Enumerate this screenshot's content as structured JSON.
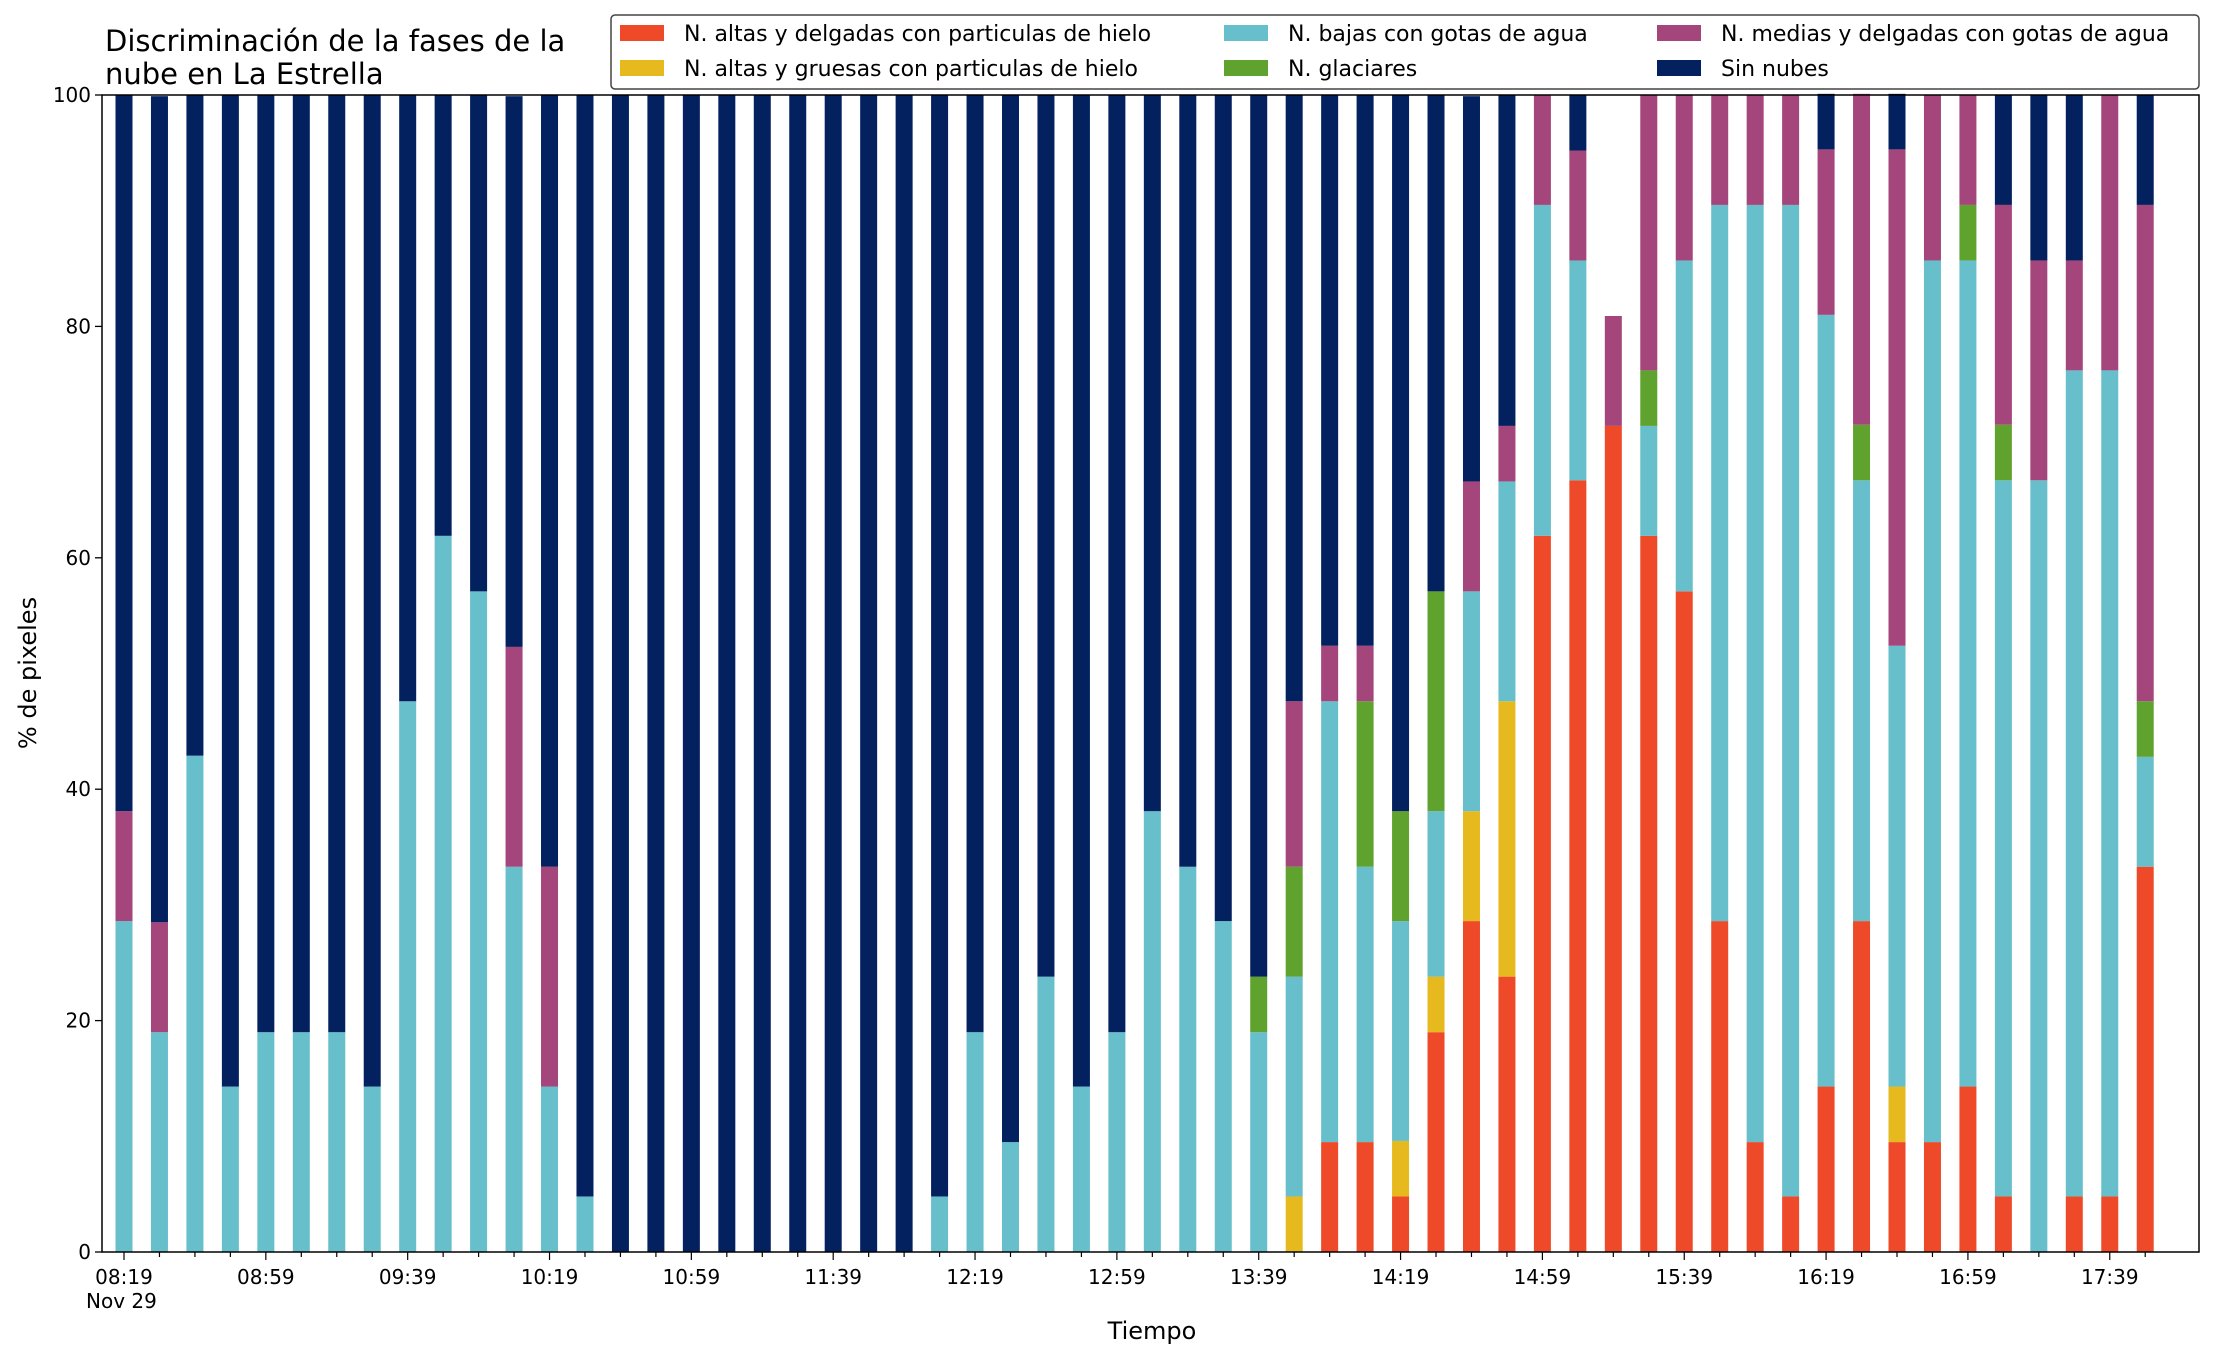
{
  "chart_data": {
    "type": "bar",
    "stacked": true,
    "title_line1": "Discriminación de la fases de la",
    "title_line2": "nube en La Estrella",
    "xlabel": "Tiempo",
    "ylabel": "% de pixeles",
    "ylim": [
      0,
      100
    ],
    "y_ticks": [
      "0",
      "20",
      "40",
      "60",
      "80",
      "100"
    ],
    "x_tick_labels": [
      "08:19",
      "08:59",
      "09:39",
      "10:19",
      "10:59",
      "11:39",
      "12:19",
      "12:59",
      "13:39",
      "14:19",
      "14:59",
      "15:39",
      "16:19",
      "16:59",
      "17:39"
    ],
    "x_sublabel": "Nov 29",
    "categories": [
      "08:19",
      "08:29",
      "08:39",
      "08:49",
      "08:59",
      "09:09",
      "09:19",
      "09:29",
      "09:39",
      "09:49",
      "09:59",
      "10:09",
      "10:19",
      "10:29",
      "10:39",
      "10:49",
      "10:59",
      "11:09",
      "11:19",
      "11:29",
      "11:39",
      "11:49",
      "11:59",
      "12:09",
      "12:19",
      "12:29",
      "12:39",
      "12:49",
      "12:59",
      "13:09",
      "13:19",
      "13:29",
      "13:39",
      "13:49",
      "13:59",
      "14:09",
      "14:19",
      "14:29",
      "14:39",
      "14:49",
      "14:59",
      "15:09",
      "15:19",
      "15:29",
      "15:39",
      "15:49",
      "15:59",
      "16:09",
      "16:19",
      "16:29",
      "16:39",
      "16:49",
      "16:59",
      "17:09",
      "17:19",
      "17:29",
      "17:39",
      "17:49"
    ],
    "legend_placement": "top-right",
    "series": [
      {
        "name": "N. altas y delgadas con particulas de hielo",
        "color": "#ee4a2a",
        "values": [
          0,
          0,
          0,
          0,
          0,
          0,
          0,
          0,
          0,
          0,
          0,
          0,
          0,
          0,
          0,
          0,
          0,
          0,
          0,
          0,
          0,
          0,
          0,
          0,
          0,
          0,
          0,
          0,
          0,
          0,
          0,
          0,
          0,
          0,
          9.5,
          9.5,
          4.8,
          19,
          28.6,
          23.8,
          61.9,
          66.7,
          71.4,
          61.9,
          57.1,
          28.6,
          9.5,
          4.8,
          14.3,
          28.6,
          9.5,
          9.5,
          14.3,
          4.8,
          0,
          4.8,
          4.8,
          33.3
        ]
      },
      {
        "name": "N. altas y gruesas con particulas de hielo",
        "color": "#e6b91e",
        "values": [
          0,
          0,
          0,
          0,
          0,
          0,
          0,
          0,
          0,
          0,
          0,
          0,
          0,
          0,
          0,
          0,
          0,
          0,
          0,
          0,
          0,
          0,
          0,
          0,
          0,
          0,
          0,
          0,
          0,
          0,
          0,
          0,
          0,
          4.8,
          0,
          0,
          4.8,
          4.8,
          9.5,
          23.8,
          0,
          0,
          0,
          0,
          0,
          0,
          0,
          0,
          0,
          0,
          4.8,
          0,
          0,
          0,
          0,
          0,
          0,
          0
        ]
      },
      {
        "name": "N. bajas con gotas de agua",
        "color": "#66bfca",
        "values": [
          28.6,
          19,
          42.9,
          14.3,
          19,
          19,
          19,
          14.3,
          47.6,
          61.9,
          57.1,
          33.3,
          14.3,
          4.8,
          0,
          0,
          0,
          0,
          0,
          0,
          0,
          0,
          0,
          4.8,
          19,
          9.5,
          23.8,
          14.3,
          19,
          38.1,
          33.3,
          28.6,
          19,
          19,
          38.1,
          23.8,
          19,
          14.3,
          19,
          19,
          28.6,
          19,
          0,
          9.5,
          28.6,
          61.9,
          81,
          85.7,
          66.7,
          38.1,
          38.1,
          76.2,
          71.4,
          61.9,
          66.7,
          71.4,
          71.4,
          9.5
        ]
      },
      {
        "name": "N. glaciares",
        "color": "#5fa22e",
        "values": [
          0,
          0,
          0,
          0,
          0,
          0,
          0,
          0,
          0,
          0,
          0,
          0,
          0,
          0,
          0,
          0,
          0,
          0,
          0,
          0,
          0,
          0,
          0,
          0,
          0,
          0,
          0,
          0,
          0,
          0,
          0,
          0,
          4.8,
          9.5,
          0,
          14.3,
          9.5,
          19,
          0,
          0,
          0,
          0,
          0,
          4.8,
          0,
          0,
          0,
          0,
          0,
          4.8,
          0,
          0,
          4.8,
          4.8,
          0,
          0,
          0,
          4.8
        ]
      },
      {
        "name": "N. medias y delgadas con gotas de agua",
        "color": "#a4457b",
        "values": [
          9.5,
          9.5,
          0,
          0,
          0,
          0,
          0,
          0,
          0,
          0,
          0,
          19,
          19,
          0,
          0,
          0,
          0,
          0,
          0,
          0,
          0,
          0,
          0,
          0,
          0,
          0,
          0,
          0,
          0,
          0,
          0,
          0,
          0,
          14.3,
          4.8,
          4.8,
          0,
          0,
          9.5,
          4.8,
          9.5,
          9.5,
          9.5,
          23.8,
          14.3,
          9.5,
          9.5,
          9.5,
          14.3,
          28.6,
          42.9,
          14.3,
          9.5,
          19,
          19,
          9.5,
          23.8,
          42.9
        ]
      },
      {
        "name": "Sin nubes",
        "color": "#03205f",
        "values": [
          61.9,
          71.4,
          57.1,
          85.7,
          81,
          81,
          81,
          85.7,
          52.4,
          38.1,
          42.9,
          47.6,
          66.7,
          95.2,
          100,
          100,
          100,
          100,
          100,
          100,
          100,
          100,
          100,
          95.2,
          81,
          90.5,
          76.2,
          85.7,
          81,
          61.9,
          66.7,
          71.4,
          76.2,
          52.4,
          47.6,
          47.6,
          61.9,
          42.9,
          33.3,
          28.6,
          0,
          4.8,
          0,
          0,
          0,
          0,
          0,
          0,
          4.8,
          0,
          4.8,
          0,
          0,
          9.5,
          14.3,
          14.3,
          0,
          9.5
        ]
      }
    ]
  }
}
